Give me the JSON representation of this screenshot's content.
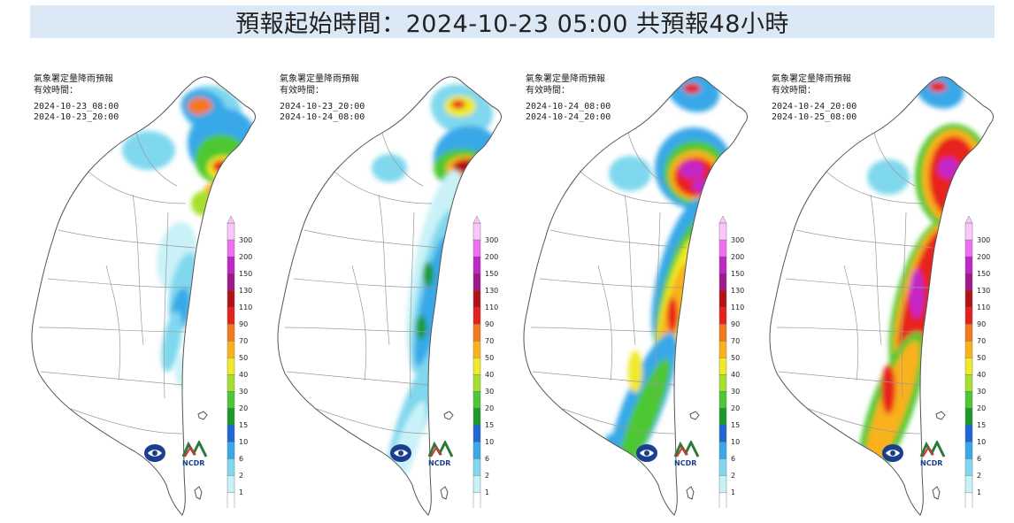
{
  "header": {
    "title": "預報起始時間：2024-10-23 05:00  共預報48小時"
  },
  "legend": {
    "levels": [
      "1",
      "2",
      "6",
      "10",
      "15",
      "20",
      "30",
      "40",
      "50",
      "70",
      "90",
      "110",
      "130",
      "150",
      "200",
      "300"
    ],
    "colors": [
      "#ffffff",
      "#c9f2f8",
      "#7fd8ee",
      "#39a8e8",
      "#1f66d8",
      "#1e9a2c",
      "#4ec832",
      "#a6df2c",
      "#f0e928",
      "#f9b11c",
      "#f5781c",
      "#e8201c",
      "#b60f18",
      "#a0198c",
      "#c225c8",
      "#f06ef0",
      "#fbc8fb"
    ]
  },
  "panels": [
    {
      "title": "氣象署定量降雨預報",
      "subtitle": "有效時間：",
      "start": "2024-10-23_08:00",
      "end": "2024-10-23_20:00",
      "intensity": 0
    },
    {
      "title": "氣象署定量降雨預報",
      "subtitle": "有效時間：",
      "start": "2024-10-23_20:00",
      "end": "2024-10-24_08:00",
      "intensity": 1
    },
    {
      "title": "氣象署定量降雨預報",
      "subtitle": "有效時間：",
      "start": "2024-10-24_08:00",
      "end": "2024-10-24_20:00",
      "intensity": 2
    },
    {
      "title": "氣象署定量降雨預報",
      "subtitle": "有效時間：",
      "start": "2024-10-24_20:00",
      "end": "2024-10-25_08:00",
      "intensity": 3
    }
  ],
  "logos": {
    "ncdr_text": "NCDR"
  }
}
